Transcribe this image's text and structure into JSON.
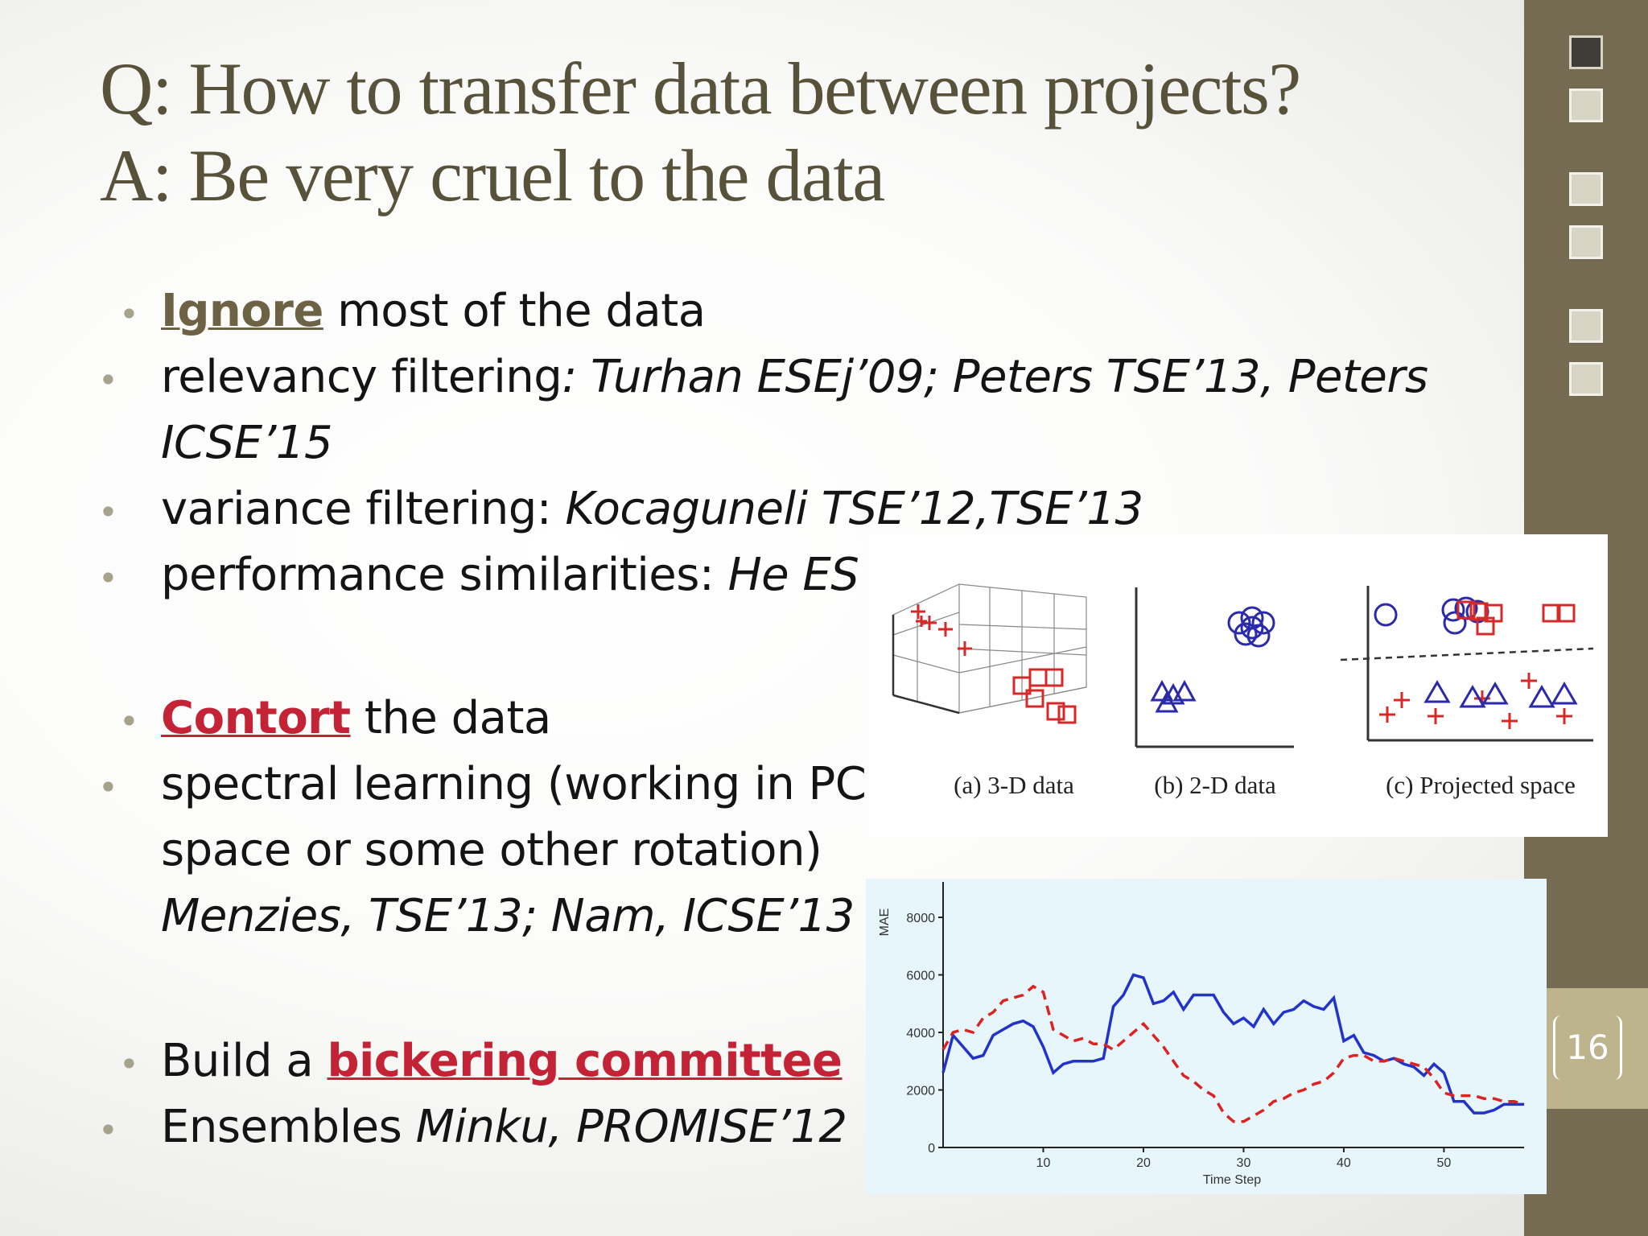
{
  "slide": {
    "title_q": "Q: How to transfer data between projects?",
    "title_a": "A: Be very cruel to the data",
    "page_number": "16"
  },
  "content": {
    "ignore_kw": "Ignore",
    "ignore_rest": " most of the data",
    "relevancy_1": "relevancy filtering",
    "relevancy_1_it": ": Turhan ESEj’09; Peters TSE’13, Peters",
    "relevancy_2_it": "ICSE’15",
    "variance": "variance filtering:  ",
    "variance_it": "Kocaguneli  TSE’12,TSE’13",
    "performance": "performance similarities:  ",
    "performance_it": "He ES",
    "contort_kw": "Contort",
    "contort_rest": " the data",
    "spectral_1": "spectral learning (working in PC",
    "spectral_2": "space or some other rotation)",
    "spectral_3_it": "Menzies, TSE’13; Nam, ICSE’13",
    "build_pre": "Build a ",
    "build_kw": "bickering committee",
    "ensembles": "Ensembles ",
    "ensembles_it": "Minku, PROMISE’12"
  },
  "figure_top": {
    "captions": [
      "(a) 3-D data",
      "(b) 2-D data",
      "(c) Projected space"
    ]
  },
  "chart_data": {
    "type": "line",
    "xlabel": "Time Step",
    "ylabel": "MAE",
    "xlim": [
      0,
      58
    ],
    "ylim": [
      0,
      8000
    ],
    "x_ticks": [
      10,
      20,
      30,
      40,
      50
    ],
    "y_ticks": [
      0,
      2000,
      4000,
      6000,
      8000
    ],
    "colors": {
      "solid": "#2233cc",
      "dashed": "#dd2222"
    },
    "series": [
      {
        "style": "solid",
        "x": [
          0,
          1,
          2,
          3,
          4,
          5,
          6,
          7,
          8,
          9,
          10,
          11,
          12,
          13,
          14,
          15,
          16,
          17,
          18,
          19,
          20,
          21,
          22,
          23,
          24,
          25,
          26,
          27,
          28,
          29,
          30,
          31,
          32,
          33,
          34,
          35,
          36,
          37,
          38,
          39,
          40,
          41,
          42,
          43,
          44,
          45,
          46,
          47,
          48,
          49,
          50,
          51,
          52,
          53,
          54,
          55,
          56,
          57,
          58
        ],
        "values": [
          2600,
          3900,
          3500,
          3100,
          3200,
          3900,
          4100,
          4300,
          4400,
          4200,
          3500,
          2600,
          2900,
          3000,
          3000,
          3000,
          3100,
          4900,
          5300,
          6000,
          5900,
          5000,
          5100,
          5400,
          4800,
          5300,
          5300,
          5300,
          4700,
          4300,
          4500,
          4200,
          4800,
          4300,
          4700,
          4800,
          5100,
          4900,
          4800,
          5200,
          3700,
          3900,
          3300,
          3200,
          3000,
          3100,
          2900,
          2800,
          2500,
          2900,
          2600,
          1600,
          1600,
          1200,
          1200,
          1300,
          1500,
          1500,
          1500
        ]
      },
      {
        "style": "dashed",
        "x": [
          0,
          1,
          2,
          3,
          4,
          5,
          6,
          7,
          8,
          9,
          10,
          11,
          12,
          13,
          14,
          15,
          16,
          17,
          18,
          19,
          20,
          21,
          22,
          23,
          24,
          25,
          26,
          27,
          28,
          29,
          30,
          31,
          32,
          33,
          34,
          35,
          36,
          37,
          38,
          39,
          40,
          41,
          42,
          43,
          44,
          45,
          46,
          47,
          48,
          49,
          50,
          51,
          52,
          53,
          54,
          55,
          56,
          57,
          58
        ],
        "values": [
          3400,
          4000,
          4100,
          4000,
          4500,
          4700,
          5100,
          5200,
          5300,
          5600,
          5400,
          4100,
          3900,
          3700,
          3800,
          3600,
          3600,
          3400,
          3700,
          4000,
          4300,
          3900,
          3500,
          3000,
          2500,
          2300,
          2000,
          1800,
          1200,
          900,
          900,
          1100,
          1300,
          1600,
          1700,
          1900,
          2000,
          2200,
          2300,
          2600,
          3100,
          3200,
          3200,
          3000,
          3000,
          3100,
          3000,
          2900,
          2800,
          2400,
          1900,
          1800,
          1800,
          1800,
          1700,
          1700,
          1600,
          1600,
          1500
        ]
      }
    ]
  }
}
